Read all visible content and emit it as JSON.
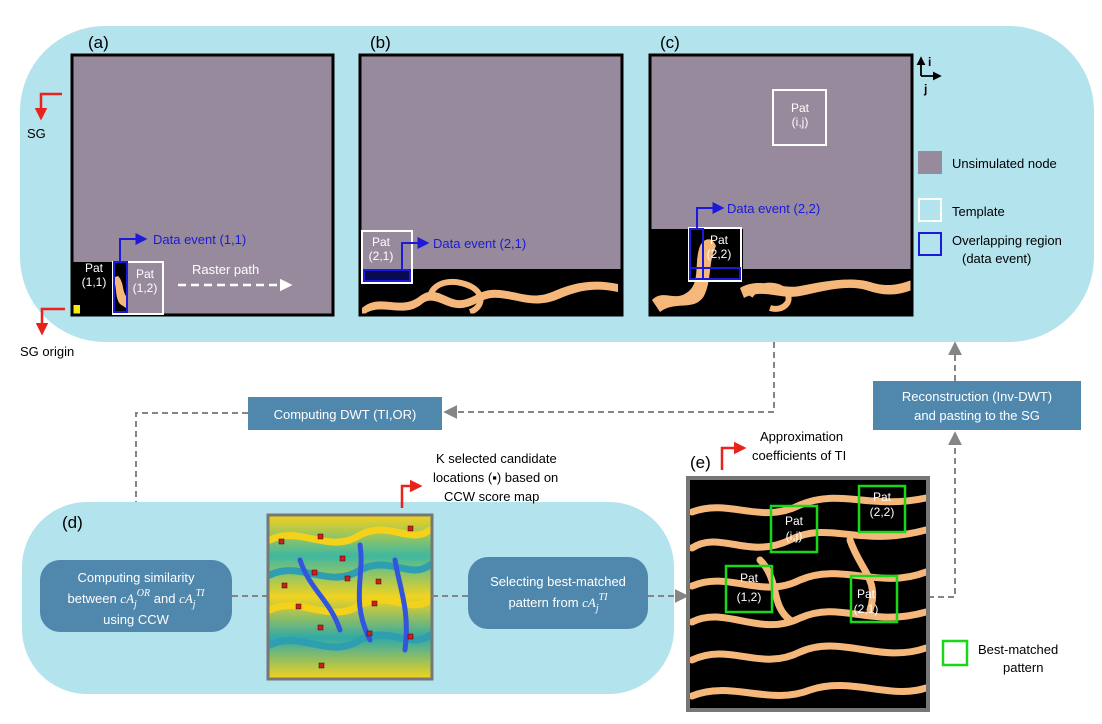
{
  "panels": {
    "a": "(a)",
    "b": "(b)",
    "c": "(c)",
    "d": "(d)",
    "e": "(e)"
  },
  "sg": {
    "label": "SG",
    "origin_label": "SG origin"
  },
  "axes": {
    "i": "i",
    "j": "j"
  },
  "panel_a": {
    "pat_11": {
      "line1": "Pat",
      "line2": "(1,1)"
    },
    "pat_12": {
      "line1": "Pat",
      "line2": "(1,2)"
    },
    "data_event": "Data event (1,1)",
    "raster_path": "Raster path"
  },
  "panel_b": {
    "pat_21": {
      "line1": "Pat",
      "line2": "(2,1)"
    },
    "data_event": "Data event (2,1)"
  },
  "panel_c": {
    "pat_ij": {
      "line1": "Pat",
      "line2": "(i,j)"
    },
    "pat_22": {
      "line1": "Pat",
      "line2": "(2,2)"
    },
    "data_event": "Data event (2,2)"
  },
  "legend_top": {
    "unsimulated": "Unsimulated node",
    "template": "Template",
    "overlap_line1": "Overlapping region",
    "overlap_line2": "(data event)"
  },
  "boxes": {
    "dwt": "Computing DWT (TI,OR)",
    "reconstruction_line1": "Reconstruction (Inv-DWT)",
    "reconstruction_line2": "and pasting to the SG",
    "similarity_line1": "Computing similarity",
    "similarity_line2_prefix": "between ",
    "similarity_mid": " and ",
    "similarity_line3": "using CCW",
    "selecting_line1": "Selecting best-matched",
    "selecting_line2_prefix": "pattern from "
  },
  "math": {
    "ca": "cA",
    "sub_j": "j",
    "sup_or": "OR",
    "sup_ti": "TI"
  },
  "annotations": {
    "candidates_line1": "K selected candidate",
    "candidates_line2": "locations (▪) based on",
    "candidates_line3": "CCW score map",
    "approx_line1": "Approximation",
    "approx_line2": "coefficients of TI"
  },
  "panel_e": {
    "pat_ij": {
      "line1": "Pat",
      "line2": "(i,j)"
    },
    "pat_22": {
      "line1": "Pat",
      "line2": "(2,2)"
    },
    "pat_12": {
      "line1": "Pat",
      "line2": "(1,2)"
    },
    "pat_21": {
      "line1": "Pat",
      "line2": "(2,1)"
    }
  },
  "legend_bottom": {
    "best_line1": "Best-matched",
    "best_line2": "pattern"
  },
  "colors": {
    "panel_bg": "#b3e3ec",
    "unsimulated": "#978a9c",
    "channel": "#f6b87a",
    "box_fill": "#4f87ad",
    "data_event": "#1a1ad8",
    "arrow_red": "#e8231c",
    "match_green": "#18d818",
    "dashed_gray": "#858585"
  }
}
